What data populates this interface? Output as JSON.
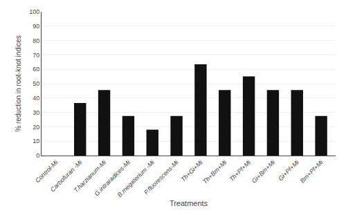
{
  "chart_data": {
    "type": "bar",
    "categories": [
      "Control-Mi",
      "Carbofuran -Mi",
      "T.harzianum-Mi",
      "G.intraradices-Mi",
      "B.megaterium -Mi",
      "P.fluorescens-Mi",
      "Th+Gi+Mi",
      "Th+Bm+Mi",
      "Th+Pf+Mi",
      "Gi+Bm+Mi",
      "Gi+Pf+Mi",
      "Bm+Pf+Mi"
    ],
    "values": [
      0,
      36.5,
      45.5,
      27.5,
      18.0,
      27.5,
      63.5,
      45.5,
      55.0,
      45.5,
      45.5,
      27.5
    ],
    "color": "#111111",
    "xlabel": "Treatments",
    "ylabel": "% reduction in root-knot indices",
    "ylim": [
      0,
      100
    ],
    "yticks": [
      0,
      10,
      20,
      30,
      40,
      50,
      60,
      70,
      80,
      90,
      100
    ],
    "grid": true
  }
}
